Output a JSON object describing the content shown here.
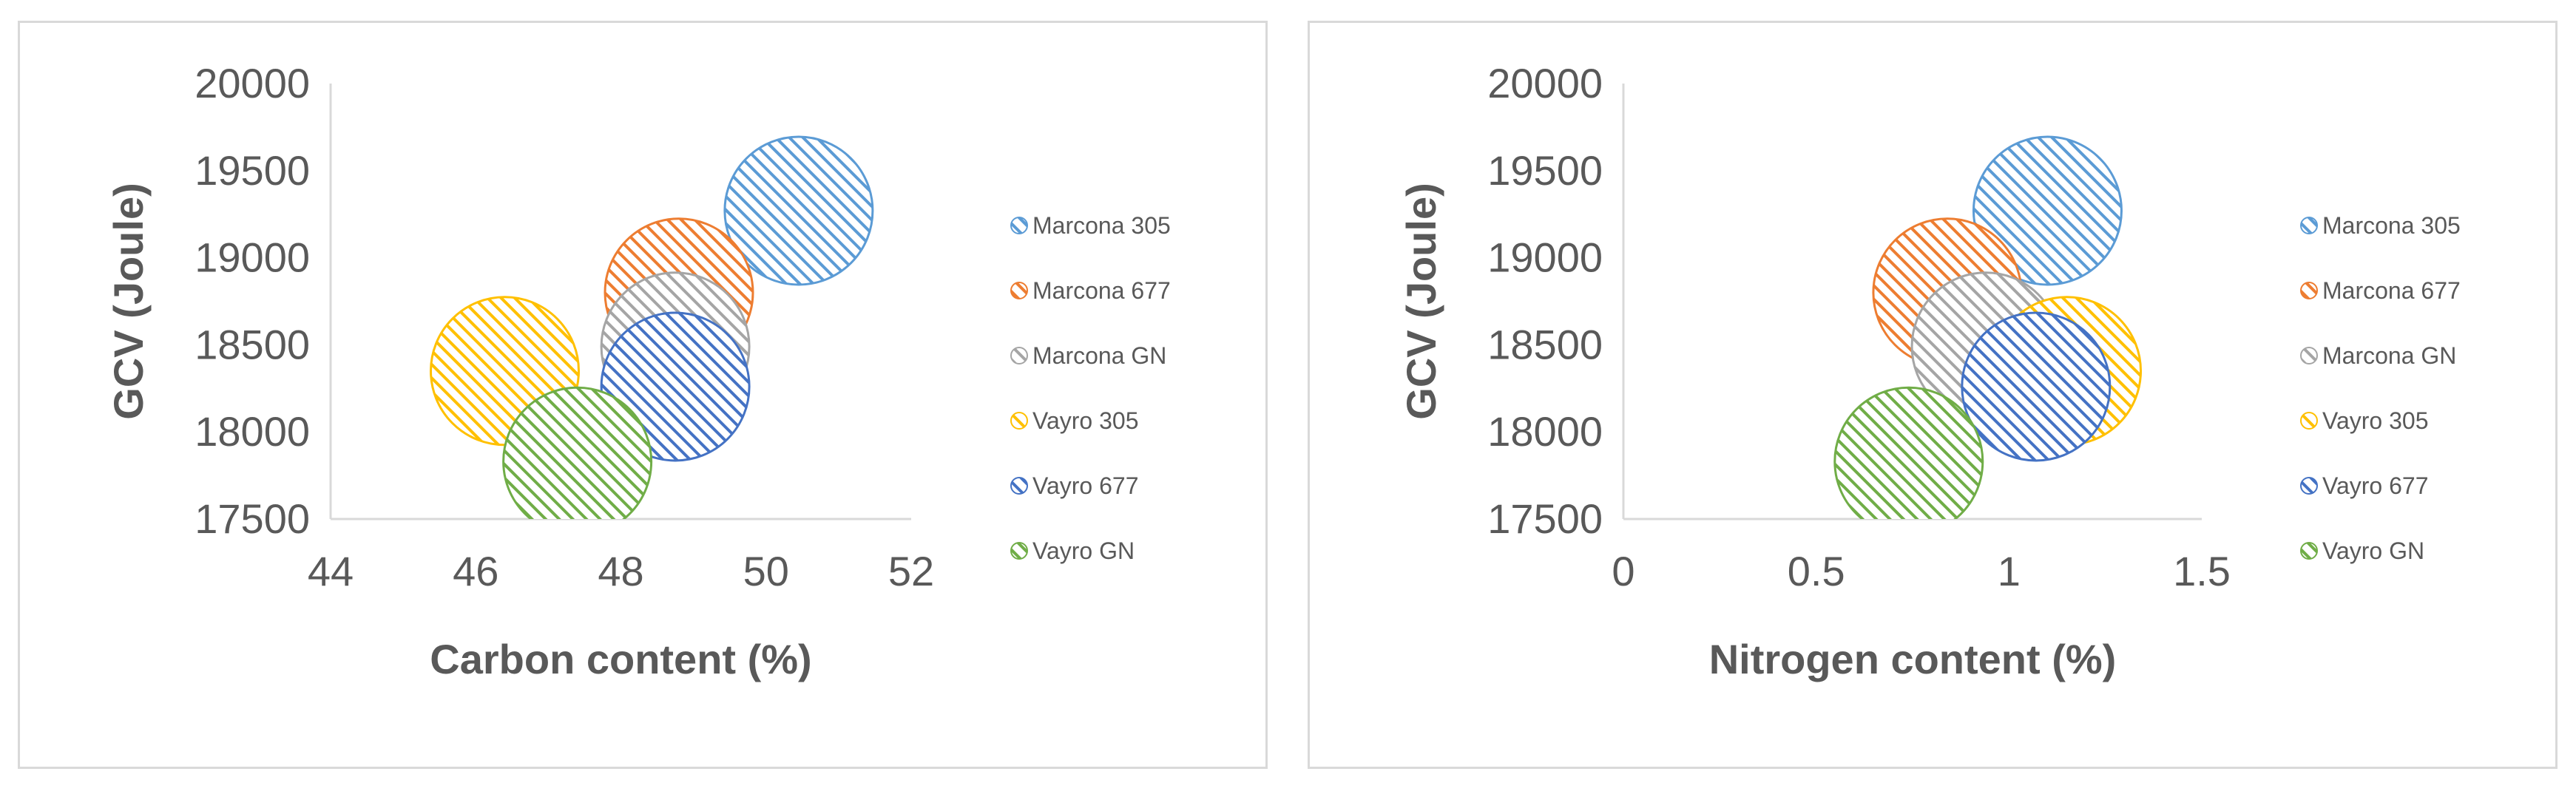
{
  "chart_data": [
    {
      "type": "bubble",
      "xlabel": "Carbon content (%)",
      "ylabel": "GCV (Joule)",
      "xlim": [
        44,
        52
      ],
      "ylim": [
        17500,
        20000
      ],
      "xticks": [
        "44",
        "46",
        "48",
        "50",
        "52"
      ],
      "yticks": [
        "17500",
        "18000",
        "18500",
        "19000",
        "19500",
        "20000"
      ],
      "grid": false,
      "legend_position": "right",
      "series": [
        {
          "name": "Marcona 305",
          "color": "#5B9BD5",
          "x": 50.45,
          "y": 19270
        },
        {
          "name": "Marcona 677",
          "color": "#ED7D31",
          "x": 48.8,
          "y": 18800
        },
        {
          "name": "Marcona GN",
          "color": "#A5A5A5",
          "x": 48.75,
          "y": 18490
        },
        {
          "name": "Vayro 305",
          "color": "#FFC000",
          "x": 46.4,
          "y": 18350
        },
        {
          "name": "Vayro 677",
          "color": "#4472C4",
          "x": 48.75,
          "y": 18260
        },
        {
          "name": "Vayro GN",
          "color": "#70AD47",
          "x": 47.4,
          "y": 17830
        }
      ]
    },
    {
      "type": "bubble",
      "xlabel": "Nitrogen content (%)",
      "ylabel": "GCV (Joule)",
      "xlim": [
        0,
        1.5
      ],
      "ylim": [
        17500,
        20000
      ],
      "xticks": [
        "0",
        "0.5",
        "1",
        "1.5"
      ],
      "yticks": [
        "17500",
        "18000",
        "18500",
        "19000",
        "19500",
        "20000"
      ],
      "grid": false,
      "legend_position": "right",
      "series": [
        {
          "name": "Marcona 305",
          "color": "#5B9BD5",
          "x": 1.1,
          "y": 19270
        },
        {
          "name": "Marcona 677",
          "color": "#ED7D31",
          "x": 0.84,
          "y": 18800
        },
        {
          "name": "Marcona GN",
          "color": "#A5A5A5",
          "x": 0.94,
          "y": 18490
        },
        {
          "name": "Vayro 305",
          "color": "#FFC000",
          "x": 1.15,
          "y": 18350
        },
        {
          "name": "Vayro 677",
          "color": "#4472C4",
          "x": 1.07,
          "y": 18260
        },
        {
          "name": "Vayro GN",
          "color": "#70AD47",
          "x": 0.74,
          "y": 17830
        }
      ]
    }
  ]
}
